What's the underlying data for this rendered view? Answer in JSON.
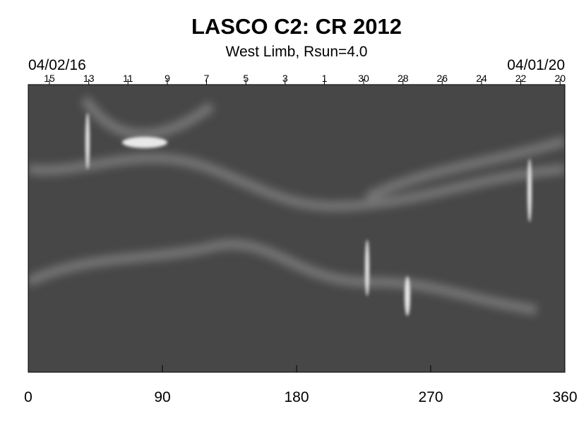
{
  "chart_data": {
    "type": "image",
    "title": "LASCO C2: CR 2012",
    "subtitle": "West Limb, Rsun=4.0",
    "start_date": "04/02/16",
    "end_date": "04/01/20",
    "xlim": [
      0,
      360
    ],
    "xticks": [
      0,
      90,
      180,
      270,
      360
    ],
    "x2ticks": [
      {
        "value": 14.2,
        "label": "15"
      },
      {
        "value": 40.6,
        "label": "13"
      },
      {
        "value": 66.9,
        "label": "11"
      },
      {
        "value": 93.3,
        "label": "9"
      },
      {
        "value": 119.6,
        "label": "7"
      },
      {
        "value": 146.0,
        "label": "5"
      },
      {
        "value": 172.3,
        "label": "3"
      },
      {
        "value": 198.7,
        "label": "1"
      },
      {
        "value": 225.0,
        "label": "30"
      },
      {
        "value": 251.4,
        "label": "28"
      },
      {
        "value": 277.7,
        "label": "26"
      },
      {
        "value": 304.1,
        "label": "24"
      },
      {
        "value": 330.4,
        "label": "22"
      },
      {
        "value": 356.8,
        "label": "20"
      }
    ]
  }
}
